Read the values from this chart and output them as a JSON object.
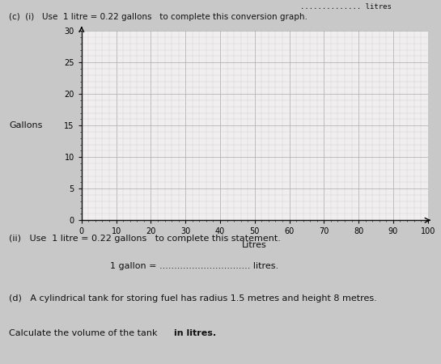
{
  "fig_bg": "#c8c8c8",
  "plot_bg": "#f0eeee",
  "grid_major_color": "#b0b0b0",
  "grid_minor_color": "#d0cccc",
  "axis_color": "#111111",
  "text_color": "#111111",
  "title_c_i": "(c)  (i)   Use  1 litre = 0.22 gallons   to complete this conversion graph.",
  "ylabel": "Gallons",
  "xlabel": "Litres",
  "xlim": [
    0,
    100
  ],
  "ylim": [
    0,
    30
  ],
  "xticks": [
    0,
    10,
    20,
    30,
    40,
    50,
    60,
    70,
    80,
    90,
    100
  ],
  "yticks": [
    0,
    5,
    10,
    15,
    20,
    25,
    30
  ],
  "text_ii_header": "(ii)   Use  1 litre = 0.22 gallons   to complete this statement.",
  "text_ii_body": "1 gallon = ............................... litres.",
  "text_d_header": "(d)   A cylindrical tank for storing fuel has radius 1.5 metres and height 8 metres.",
  "text_d_body_plain": "Calculate the volume of the tank ",
  "text_d_body_bold": "in litres.",
  "top_right_dots": ".............. litres",
  "figsize": [
    5.45,
    4.5
  ],
  "dpi": 100
}
